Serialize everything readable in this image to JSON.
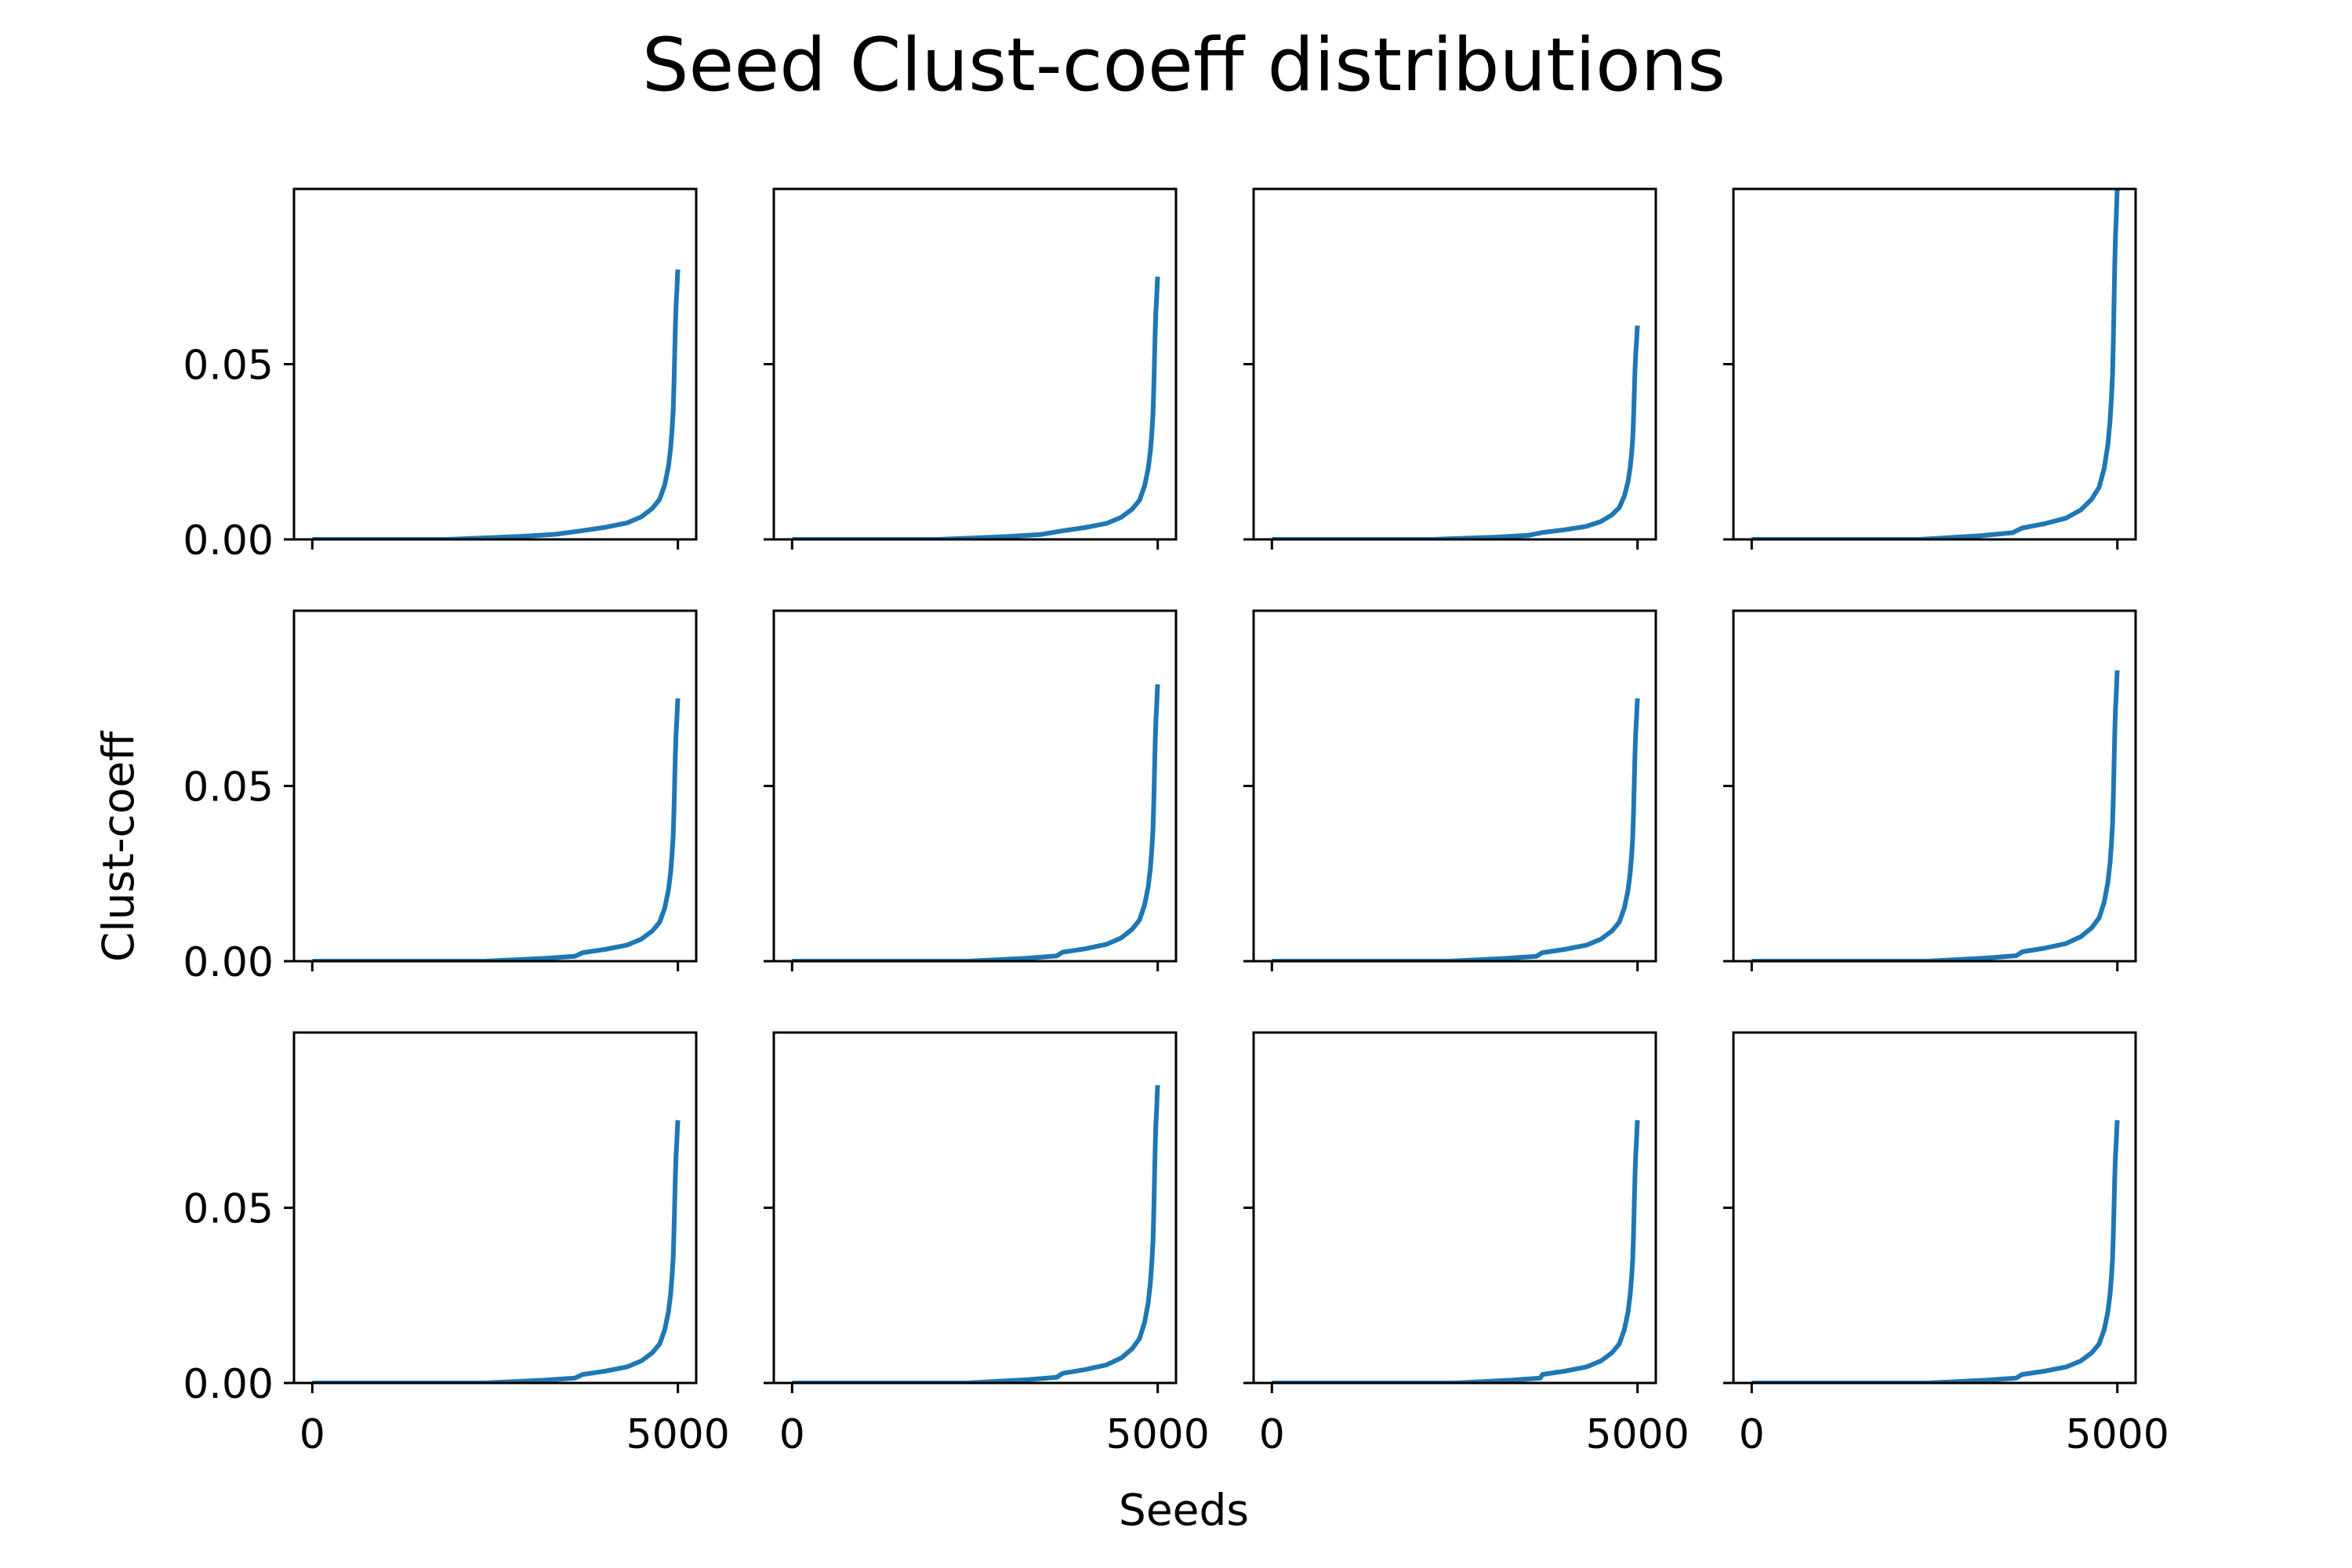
{
  "chart_data": {
    "type": "line",
    "title": "Seed Clust-coeff distributions",
    "xlabel": "Seeds",
    "ylabel": "Clust-coeff",
    "rows": 3,
    "cols": 4,
    "sharex": true,
    "sharey": true,
    "xlim": [
      -250,
      5250
    ],
    "ylim": [
      0,
      0.1
    ],
    "xticks": [
      0,
      5000
    ],
    "xtick_labels": [
      "0",
      "5000"
    ],
    "yticks": [
      0,
      0.05
    ],
    "ytick_labels": [
      "0.00",
      "0.05"
    ],
    "grid": false,
    "line_color": "#1f77b4",
    "base_curve": {
      "x": [
        0,
        1800,
        2300,
        2800,
        3300,
        3700,
        4000,
        4300,
        4500,
        4650,
        4750,
        4820,
        4870,
        4900,
        4920,
        4935,
        4945,
        4955,
        4965,
        4975,
        4985,
        4992,
        4996,
        5000
      ],
      "y": [
        0,
        0,
        0.0004,
        0.0008,
        0.0014,
        0.0024,
        0.0033,
        0.0045,
        0.0062,
        0.0085,
        0.011,
        0.015,
        0.02,
        0.025,
        0.03,
        0.035,
        0.042,
        0.05,
        0.058,
        0.064,
        0.068,
        0.071,
        0.073,
        0.074
      ]
    },
    "panels": [
      {
        "max": 0.077,
        "flat_end": 1850
      },
      {
        "max": 0.075,
        "flat_end": 2000
      },
      {
        "max": 0.061,
        "flat_end": 2200
      },
      {
        "max": 0.1,
        "flat_end": 2300
      },
      {
        "max": 0.075,
        "flat_end": 2350
      },
      {
        "max": 0.079,
        "flat_end": 2400
      },
      {
        "max": 0.075,
        "flat_end": 2400
      },
      {
        "max": 0.083,
        "flat_end": 2400
      },
      {
        "max": 0.075,
        "flat_end": 2350
      },
      {
        "max": 0.085,
        "flat_end": 2400
      },
      {
        "max": 0.075,
        "flat_end": 2500
      },
      {
        "max": 0.075,
        "flat_end": 2400
      }
    ]
  }
}
